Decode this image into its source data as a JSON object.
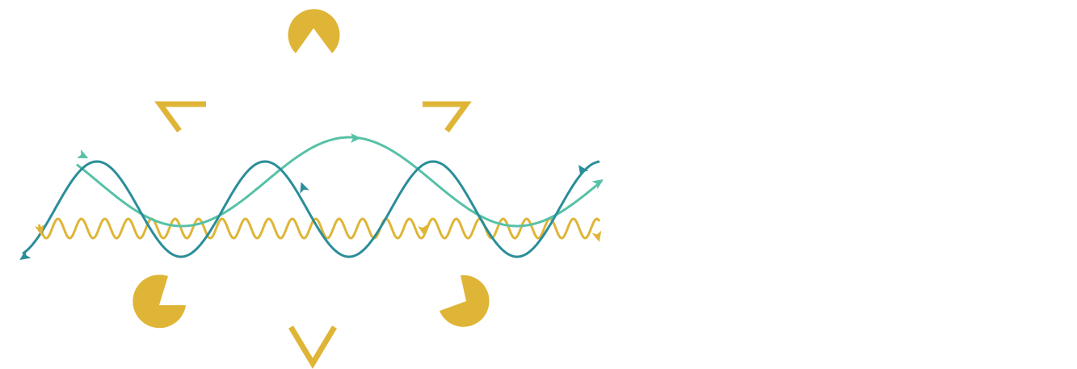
{
  "diagram": {
    "colors": {
      "background": "#ffffff",
      "gold": "#dfb537",
      "teal_dark": "#2a8e9a",
      "teal_light": "#57c1a7"
    },
    "shapes": [
      {
        "kind": "pacman-top",
        "fill": "gold"
      },
      {
        "kind": "pacman-bottom-left",
        "fill": "gold"
      },
      {
        "kind": "pacman-bottom-right",
        "fill": "gold"
      },
      {
        "kind": "corner-top-left",
        "stroke": "gold"
      },
      {
        "kind": "corner-top-right",
        "stroke": "gold"
      },
      {
        "kind": "chevron-bottom",
        "stroke": "gold"
      }
    ],
    "waves": [
      {
        "kind": "sine-wave",
        "stroke": "teal_dark"
      },
      {
        "kind": "broad-wave",
        "stroke": "teal_light"
      },
      {
        "kind": "wiggly-wave",
        "stroke": "gold"
      }
    ]
  }
}
